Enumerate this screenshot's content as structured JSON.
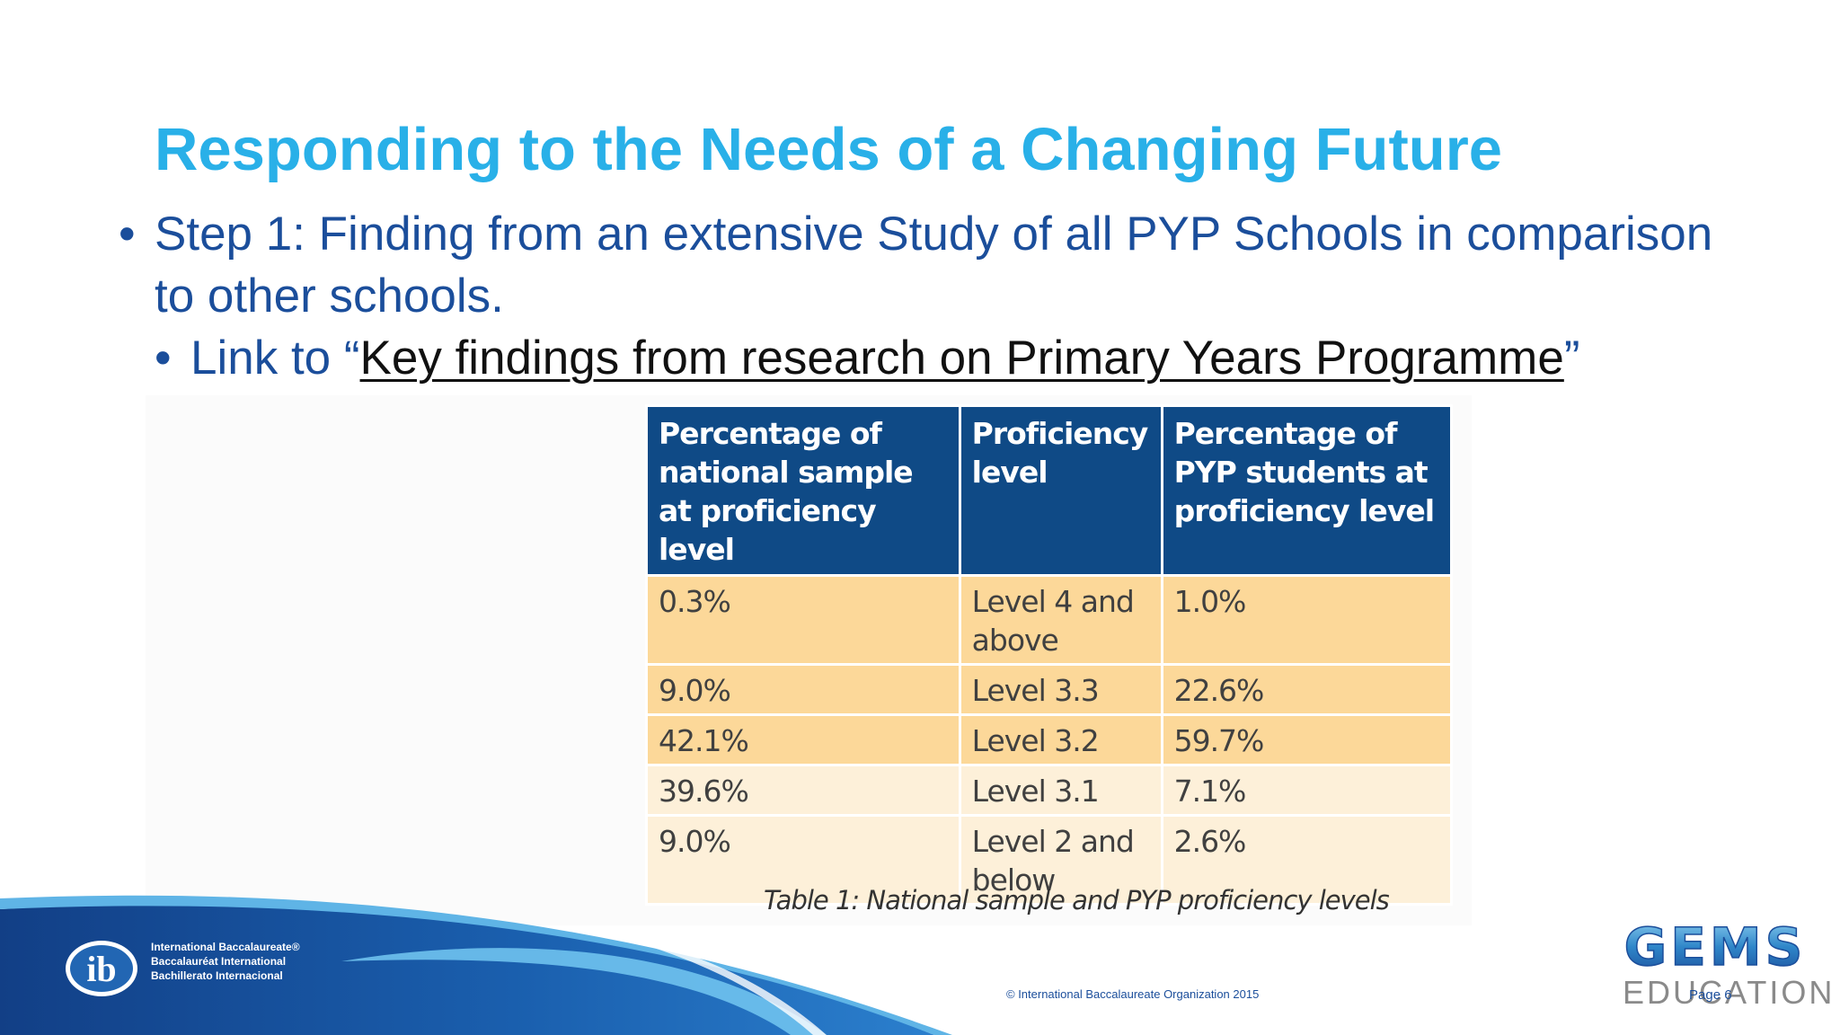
{
  "slide": {
    "title": "Responding to the Needs of a Changing Future",
    "bullet1": "Step 1: Finding from an extensive Study of all PYP Schools in comparison to other schools.",
    "bullet_char": "•",
    "sub_bullet_prefix": "Link to “",
    "sub_bullet_link": "Key findings from research on Primary Years Programme",
    "sub_bullet_suffix": "”"
  },
  "table": {
    "headers": [
      "Percentage of national sample at proficiency level",
      "Proficiency level",
      "Percentage of PYP students at proficiency level"
    ],
    "rows": [
      [
        "0.3%",
        "Level 4 and above",
        "1.0%"
      ],
      [
        "9.0%",
        "Level 3.3",
        "22.6%"
      ],
      [
        "42.1%",
        "Level 3.2",
        "59.7%"
      ],
      [
        "39.6%",
        "Level 3.1",
        "7.1%"
      ],
      [
        "9.0%",
        "Level 2 and below",
        "2.6%"
      ]
    ],
    "caption": "Table 1: National sample and PYP proficiency levels"
  },
  "footer": {
    "ib_lines": [
      "International Baccalaureate®",
      "Baccalauréat International",
      "Bachillerato Internacional"
    ],
    "ib_logo_text": "ib",
    "copyright": "© International Baccalaureate Organization 2015",
    "gems_logo_text": "GEMS",
    "gems_word": "EDUCATION",
    "page": "Page 6"
  },
  "colors": {
    "title": "#29b0e8",
    "body": "#1b4e9b",
    "table_header": "#0f4a86",
    "row_highlight": "#fcd899",
    "row_light": "#fdf0d9"
  }
}
